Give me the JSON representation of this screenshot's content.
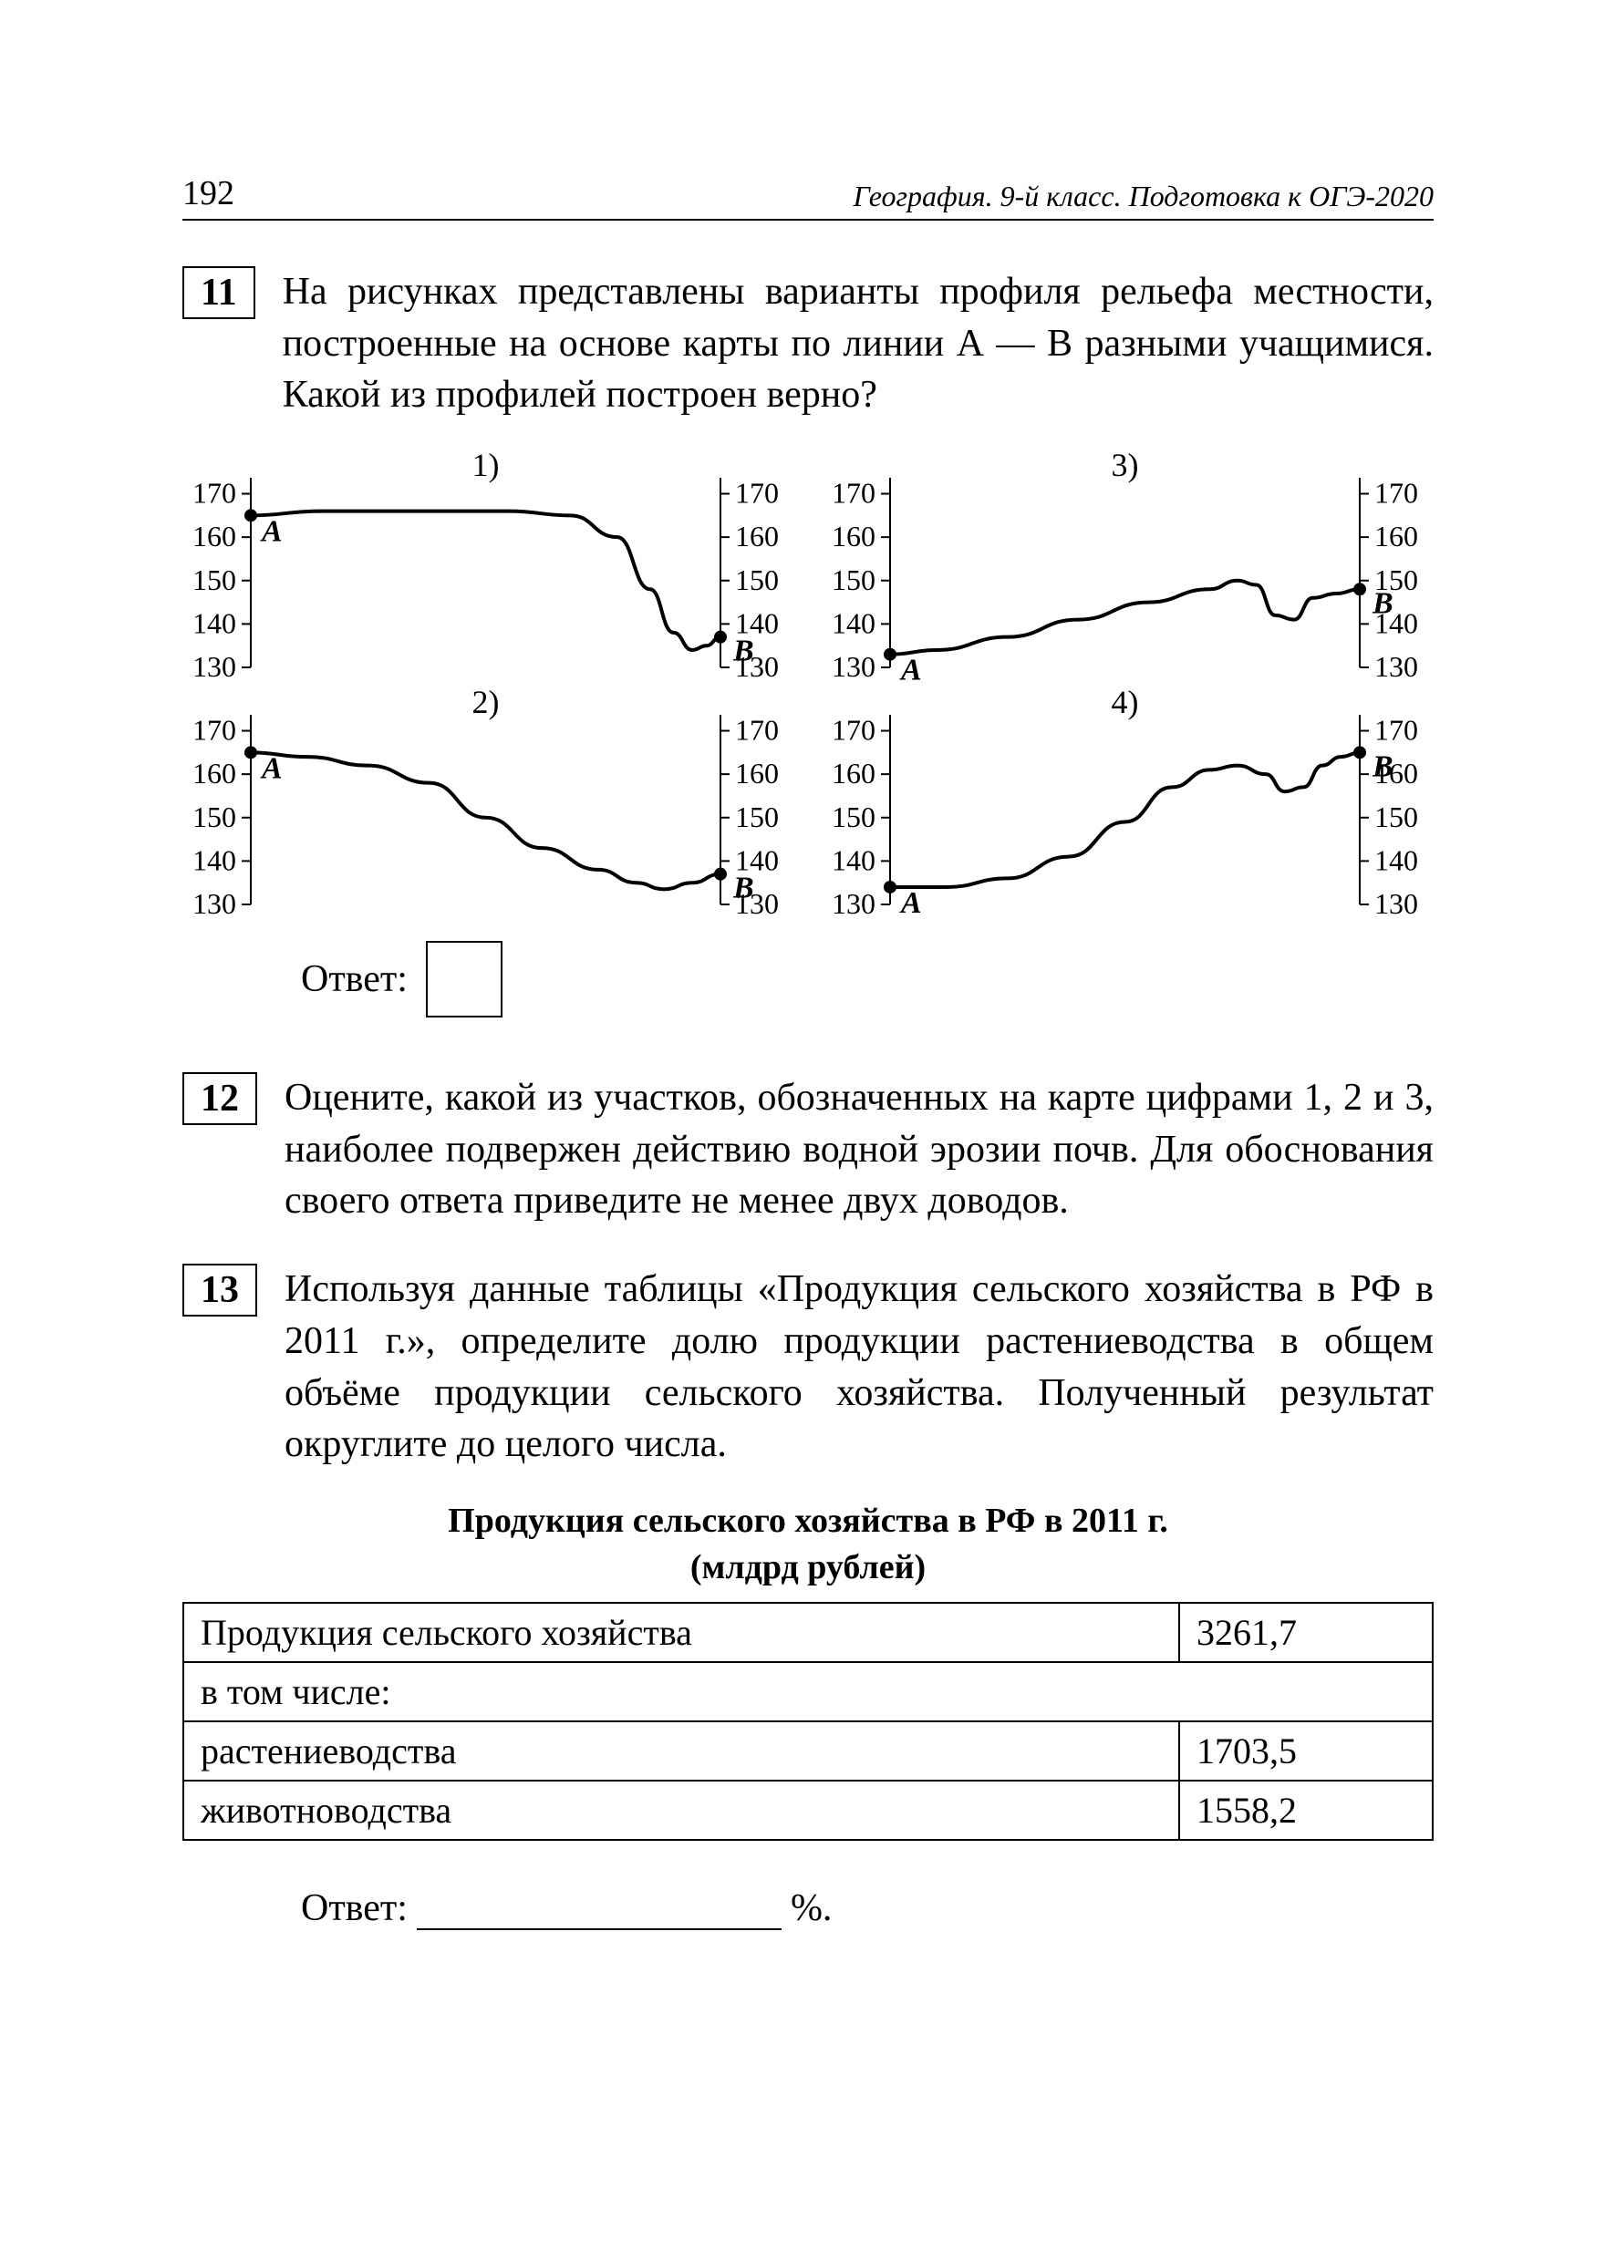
{
  "header": {
    "page_number": "192",
    "title": "География. 9-й класс. Подготовка к ОГЭ-2020"
  },
  "q11": {
    "num": "11",
    "text": "На рисунках представлены варианты профиля рельефа местности, построенные на основе карты по линии А — В разными учащимися. Какой из профилей построен верно?",
    "answer_label": "Ответ:",
    "charts": {
      "y_ticks": [
        130,
        140,
        150,
        160,
        170
      ],
      "ylim": [
        130,
        172
      ],
      "colors": {
        "axis": "#000000",
        "line": "#000000",
        "bg": "#ffffff"
      },
      "line_width": 4,
      "axis_width": 2,
      "tick_fontsize": 32,
      "label_fontsize": 34,
      "panel_label_fontsize": 36,
      "panels": [
        {
          "label": "1)",
          "A_y": 165,
          "B_y": 137,
          "points": [
            [
              0,
              165
            ],
            [
              0.15,
              166
            ],
            [
              0.35,
              166
            ],
            [
              0.55,
              166
            ],
            [
              0.68,
              165
            ],
            [
              0.78,
              160
            ],
            [
              0.85,
              148
            ],
            [
              0.9,
              138
            ],
            [
              0.94,
              134
            ],
            [
              0.97,
              135
            ],
            [
              1,
              137
            ]
          ]
        },
        {
          "label": "2)",
          "A_y": 165,
          "B_y": 137,
          "points": [
            [
              0,
              165
            ],
            [
              0.12,
              164
            ],
            [
              0.25,
              162
            ],
            [
              0.38,
              158
            ],
            [
              0.5,
              150
            ],
            [
              0.62,
              143
            ],
            [
              0.74,
              138
            ],
            [
              0.82,
              135
            ],
            [
              0.88,
              133.5
            ],
            [
              0.94,
              135
            ],
            [
              1,
              137
            ]
          ]
        },
        {
          "label": "3)",
          "A_y": 133,
          "B_y": 148,
          "points": [
            [
              0,
              133
            ],
            [
              0.1,
              134
            ],
            [
              0.25,
              137
            ],
            [
              0.4,
              141
            ],
            [
              0.55,
              145
            ],
            [
              0.68,
              148
            ],
            [
              0.74,
              150
            ],
            [
              0.78,
              149
            ],
            [
              0.82,
              142
            ],
            [
              0.86,
              141
            ],
            [
              0.9,
              146
            ],
            [
              0.95,
              147
            ],
            [
              1,
              148
            ]
          ]
        },
        {
          "label": "4)",
          "A_y": 134,
          "B_y": 165,
          "points": [
            [
              0,
              134
            ],
            [
              0.12,
              134
            ],
            [
              0.25,
              136
            ],
            [
              0.38,
              141
            ],
            [
              0.5,
              149
            ],
            [
              0.6,
              157
            ],
            [
              0.68,
              161
            ],
            [
              0.74,
              162
            ],
            [
              0.8,
              160
            ],
            [
              0.84,
              156
            ],
            [
              0.88,
              157
            ],
            [
              0.92,
              162
            ],
            [
              0.96,
              164
            ],
            [
              1,
              165
            ]
          ]
        }
      ]
    }
  },
  "q12": {
    "num": "12",
    "text": "Оцените, какой из участков, обозначенных на карте цифрами 1, 2 и 3, наиболее подвержен действию водной эрозии почв. Для обоснования своего ответа приведите не менее двух доводов."
  },
  "q13": {
    "num": "13",
    "text": "Используя данные таблицы «Продукция сельского хозяйства в РФ в 2011 г.», определите долю продукции растениеводства в общем объёме продукции сельского хозяйства. Полученный результат округлите до целого числа.",
    "table_title_l1": "Продукция сельского хозяйства в РФ в 2011 г.",
    "table_title_l2": "(млдрд рублей)",
    "rows": [
      {
        "label": "Продукция сельского хозяйства",
        "value": "3261,7"
      },
      {
        "label": "в том числе:",
        "value": null
      },
      {
        "label": "растениеводства",
        "value": "1703,5"
      },
      {
        "label": "животноводства",
        "value": "1558,2"
      }
    ],
    "answer_label": "Ответ:",
    "percent": "%."
  }
}
